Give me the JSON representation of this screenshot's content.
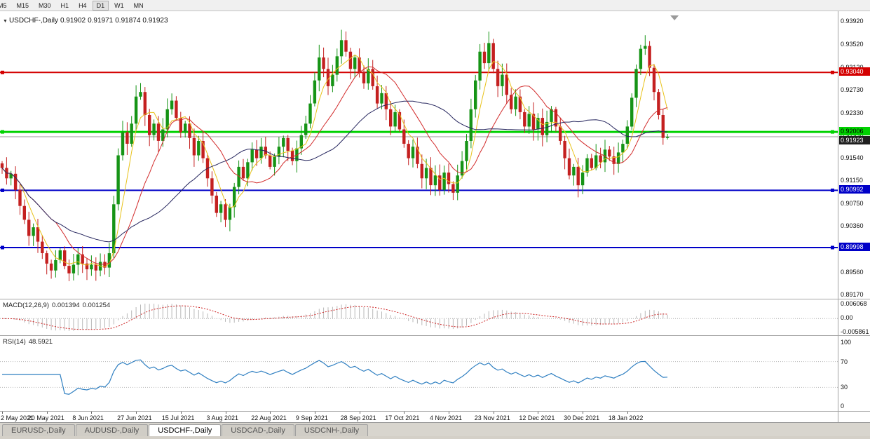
{
  "toolbar": {
    "timeframes": [
      {
        "label": "M5",
        "active": false
      },
      {
        "label": "M15",
        "active": false
      },
      {
        "label": "M30",
        "active": false
      },
      {
        "label": "H1",
        "active": false
      },
      {
        "label": "H4",
        "active": false
      },
      {
        "label": "D1",
        "active": true
      },
      {
        "label": "W1",
        "active": false
      },
      {
        "label": "MN",
        "active": false
      }
    ]
  },
  "header": {
    "dropdown_icon": "▼",
    "symbol": "USDCHF-,Daily",
    "open": "0.91902",
    "high": "0.91971",
    "low": "0.91874",
    "close": "0.91923"
  },
  "price_axis": {
    "ticks": [
      "0.93920",
      "0.93520",
      "0.93120",
      "0.92730",
      "0.92330",
      "0.91930",
      "0.91540",
      "0.91150",
      "0.90750",
      "0.90360",
      "0.89960",
      "0.89560",
      "0.89170"
    ]
  },
  "hlines": [
    {
      "price": 0.9304,
      "label": "0.93040",
      "color": "#d40000",
      "line_width": 2,
      "text_color": "#ffffff"
    },
    {
      "price": 0.92006,
      "label": "0.92006",
      "color": "#00d200",
      "line_width": 3,
      "text_color": "#000000"
    },
    {
      "price": 0.90992,
      "label": "0.90992",
      "color": "#0000c8",
      "line_width": 2,
      "text_color": "#ffffff"
    },
    {
      "price": 0.89998,
      "label": "0.89998",
      "color": "#0000c8",
      "line_width": 2,
      "text_color": "#ffffff"
    }
  ],
  "current_price": {
    "value": 0.91923,
    "label": "0.91923",
    "bg": "#1f1f1f",
    "text_color": "#ffffff",
    "line_color": "#9a9a9a"
  },
  "chart_data": {
    "type": "candlestick",
    "symbol": "USDCHF",
    "timeframe": "Daily",
    "ylim": [
      0.8917,
      0.9392
    ],
    "x_labels": [
      "2 May 2021",
      "20 May 2021",
      "8 Jun 2021",
      "27 Jun 2021",
      "15 Jul 2021",
      "3 Aug 2021",
      "22 Aug 2021",
      "9 Sep 2021",
      "28 Sep 2021",
      "17 Oct 2021",
      "4 Nov 2021",
      "23 Nov 2021",
      "12 Dec 2021",
      "30 Dec 2021",
      "18 Jan 2022"
    ],
    "label_every": 10,
    "closes": [
      0.9138,
      0.912,
      0.9128,
      0.91,
      0.9072,
      0.9048,
      0.902,
      0.9035,
      0.901,
      0.899,
      0.8972,
      0.896,
      0.8978,
      0.8995,
      0.8968,
      0.8955,
      0.897,
      0.8988,
      0.8972,
      0.8962,
      0.897,
      0.896,
      0.8975,
      0.8965,
      0.899,
      0.9075,
      0.916,
      0.92,
      0.918,
      0.9215,
      0.9262,
      0.927,
      0.923,
      0.9195,
      0.9215,
      0.9185,
      0.9205,
      0.924,
      0.9255,
      0.9225,
      0.92,
      0.9215,
      0.919,
      0.916,
      0.9185,
      0.9155,
      0.912,
      0.909,
      0.906,
      0.9075,
      0.9048,
      0.907,
      0.9105,
      0.914,
      0.912,
      0.9148,
      0.917,
      0.9155,
      0.9175,
      0.916,
      0.914,
      0.9158,
      0.9175,
      0.919,
      0.9168,
      0.915,
      0.9172,
      0.9195,
      0.9215,
      0.925,
      0.929,
      0.933,
      0.931,
      0.928,
      0.93,
      0.9332,
      0.936,
      0.934,
      0.931,
      0.933,
      0.9305,
      0.9285,
      0.931,
      0.928,
      0.925,
      0.9268,
      0.924,
      0.921,
      0.9235,
      0.9205,
      0.918,
      0.9155,
      0.9175,
      0.9145,
      0.912,
      0.9138,
      0.9108,
      0.9125,
      0.91,
      0.913,
      0.911,
      0.9095,
      0.9125,
      0.915,
      0.9185,
      0.924,
      0.929,
      0.934,
      0.932,
      0.9355,
      0.931,
      0.928,
      0.93,
      0.9265,
      0.924,
      0.9262,
      0.9235,
      0.921,
      0.9232,
      0.9205,
      0.9225,
      0.9195,
      0.9218,
      0.924,
      0.921,
      0.9185,
      0.9155,
      0.9125,
      0.914,
      0.9108,
      0.913,
      0.9155,
      0.9138,
      0.916,
      0.9148,
      0.917,
      0.9158,
      0.9145,
      0.9165,
      0.918,
      0.921,
      0.926,
      0.931,
      0.9345,
      0.935,
      0.9312,
      0.927,
      0.923,
      0.91902,
      0.91923
    ],
    "current_bar": {
      "open": 0.91902,
      "high": 0.91971,
      "low": 0.91874,
      "close": 0.91923
    },
    "wick_highs": {
      "31": 0.9276,
      "71": 0.9352,
      "76": 0.9378,
      "107": 0.9352,
      "109": 0.9375,
      "143": 0.9352,
      "144": 0.9355
    },
    "wick_lows": {
      "15": 0.8948,
      "21": 0.8949,
      "50": 0.9041,
      "98": 0.9094,
      "101": 0.9085,
      "129": 0.9087
    },
    "colors": {
      "up": "#169416",
      "down": "#c42020"
    },
    "moving_averages": [
      {
        "name": "fast",
        "period": 5,
        "color": "#e8c21a"
      },
      {
        "name": "mid",
        "period": 13,
        "color": "#d22b2b"
      },
      {
        "name": "slow",
        "period": 30,
        "color": "#26265e"
      }
    ]
  },
  "macd": {
    "label": "MACD(12,26,9)",
    "value_main": "0.001394",
    "value_signal": "0.001254",
    "fast": 12,
    "slow": 26,
    "signal": 9,
    "axis_labels": [
      "0.006068",
      "0.00",
      "-0.005861"
    ],
    "hist_color": "#b8b8b8",
    "signal_color": "#cc2222"
  },
  "rsi": {
    "label": "RSI(14)",
    "value": "48.5921",
    "period": 14,
    "levels": [
      70,
      30
    ],
    "axis_labels": [
      "100",
      "70",
      "30",
      "0"
    ],
    "line_color": "#2f7fc1"
  },
  "tabs": [
    {
      "label": "EURUSD-,Daily",
      "active": false
    },
    {
      "label": "AUDUSD-,Daily",
      "active": false
    },
    {
      "label": "USDCHF-,Daily",
      "active": true
    },
    {
      "label": "USDCAD-,Daily",
      "active": false
    },
    {
      "label": "USDCNH-,Daily",
      "active": false
    }
  ]
}
